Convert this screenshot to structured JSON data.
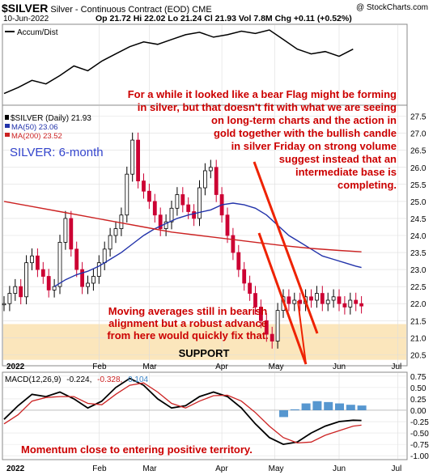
{
  "header": {
    "symbol": "$SILVER",
    "name": "Silver - Continuous Contract (EOD)",
    "exchange": "CME",
    "copyright": "@ StockCharts.com",
    "date": "10-Jun-2022",
    "quote": "Op 21.72 Hi 22.02 Lo 21.24 Cl 21.93 Vol 7.8M Chg +0.11 (+0.52%)"
  },
  "legend": {
    "accum": "Accum/Dist",
    "price": "$SILVER (Daily) 21.93",
    "ma50": "MA(50) 23.06",
    "ma200": "MA(200) 23.52",
    "macd_label": "MACD(12,26,9)",
    "macd_v1": "-0.224,",
    "macd_v2": "-0.328,",
    "macd_v3": "0.104"
  },
  "annotations": {
    "title": "SILVER: 6-month",
    "top_lines": [
      "For a while it looked like a bear Flag might be forming",
      "in silver, but that doesn't fit with what we are seeing",
      "on long-term charts and the action in",
      "gold together with the bullish candle",
      "in silver Friday on strong volume",
      "suggest instead that an",
      "intermediate base is",
      "completing."
    ],
    "ma_lines": [
      "Moving averages still in bearish",
      "alignment but a robust advance",
      "from here would quickly fix that."
    ],
    "support": "SUPPORT",
    "momentum": "Momentum close to entering positive territory."
  },
  "colors": {
    "price_up": "#000000",
    "price_down": "#cc0033",
    "ma50": "#2233aa",
    "ma200": "#cc2222",
    "annotation": "#cc0000",
    "title_blue": "#3344cc",
    "support_band": "#fbe3b5",
    "hist": "#3a85c8"
  },
  "chart_data": [
    {
      "type": "line",
      "name": "accum-dist",
      "series": [
        {
          "name": "Accum/Dist",
          "x": [
            0,
            5,
            10,
            15,
            20,
            25,
            30,
            35,
            40,
            45,
            50,
            55,
            60,
            65,
            70,
            75,
            80,
            85,
            90,
            95,
            100,
            105,
            110,
            115,
            120,
            125
          ],
          "values": [
            7,
            12,
            18,
            15,
            22,
            30,
            26,
            34,
            40,
            46,
            50,
            48,
            52,
            56,
            58,
            54,
            56,
            59,
            57,
            60,
            52,
            44,
            40,
            42,
            38,
            44
          ]
        }
      ]
    },
    {
      "type": "line",
      "name": "silver-price",
      "x_tick_labels": [
        "2022",
        "Feb",
        "Mar",
        "Apr",
        "May",
        "Jun",
        "Jul"
      ],
      "y_ticks": [
        20.5,
        21.0,
        21.5,
        22.0,
        22.5,
        23.0,
        23.5,
        24.0,
        24.5,
        25.0,
        25.5,
        26.0,
        26.5,
        27.0,
        27.5
      ],
      "ylim": [
        20.2,
        27.8
      ],
      "support_band": [
        20.35,
        21.4
      ],
      "series": [
        {
          "name": "$SILVER (Daily) 21.93",
          "x": [
            0,
            2,
            4,
            6,
            8,
            10,
            12,
            14,
            16,
            18,
            20,
            22,
            24,
            26,
            28,
            30,
            32,
            34,
            36,
            38,
            40,
            42,
            44,
            46,
            48,
            50,
            52,
            54,
            56,
            58,
            60,
            62,
            64,
            66,
            68,
            70,
            72,
            74,
            76,
            78,
            80,
            82,
            84,
            86,
            88,
            90,
            92,
            94,
            96,
            98,
            100,
            102,
            104,
            106,
            108,
            110,
            112,
            114,
            116,
            118,
            120,
            122,
            124,
            126,
            128
          ],
          "values": [
            22.0,
            22.3,
            22.5,
            22.2,
            23.2,
            23.4,
            23.0,
            22.8,
            22.4,
            22.5,
            23.8,
            24.5,
            23.6,
            23.0,
            22.5,
            22.6,
            22.8,
            23.2,
            23.6,
            24.0,
            24.2,
            24.6,
            25.8,
            26.8,
            25.6,
            25.3,
            25.0,
            24.6,
            24.2,
            24.4,
            24.8,
            25.2,
            24.9,
            24.7,
            24.5,
            25.4,
            25.9,
            26.0,
            25.2,
            24.6,
            24.0,
            23.5,
            23.0,
            22.6,
            22.3,
            21.9,
            21.5,
            21.1,
            20.9,
            21.8,
            22.2,
            22.0,
            22.1,
            22.0,
            22.2,
            22.1,
            22.3,
            22.0,
            22.1,
            22.2,
            22.0,
            21.9,
            22.1,
            22.0,
            21.93
          ]
        },
        {
          "name": "MA(50) 23.06",
          "x": [
            18,
            22,
            26,
            30,
            34,
            38,
            42,
            46,
            50,
            54,
            58,
            62,
            66,
            70,
            74,
            78,
            82,
            86,
            90,
            94,
            98,
            102,
            106,
            110,
            114,
            118,
            122,
            126,
            128
          ],
          "values": [
            22.5,
            22.7,
            22.85,
            22.95,
            23.1,
            23.3,
            23.5,
            23.75,
            24.0,
            24.2,
            24.35,
            24.5,
            24.6,
            24.68,
            24.75,
            24.9,
            24.95,
            24.9,
            24.8,
            24.6,
            24.3,
            24.0,
            23.8,
            23.6,
            23.4,
            23.3,
            23.2,
            23.1,
            23.06
          ]
        },
        {
          "name": "MA(200) 23.52",
          "x": [
            0,
            10,
            20,
            30,
            40,
            50,
            60,
            70,
            80,
            90,
            100,
            110,
            120,
            128
          ],
          "values": [
            25.0,
            24.85,
            24.7,
            24.55,
            24.4,
            24.25,
            24.1,
            24.0,
            23.9,
            23.8,
            23.7,
            23.62,
            23.56,
            23.52
          ]
        }
      ]
    },
    {
      "type": "line",
      "name": "macd",
      "x_tick_labels": [
        "2022",
        "Feb",
        "Mar",
        "Apr",
        "May",
        "Jun",
        "Jul"
      ],
      "y_ticks": [
        0.75,
        0.5,
        0.25,
        0.0,
        -0.25,
        -0.5,
        -0.75,
        -1.0
      ],
      "ylim": [
        -1.05,
        0.8
      ],
      "series": [
        {
          "name": "MACD",
          "x": [
            0,
            5,
            10,
            15,
            20,
            25,
            30,
            35,
            40,
            45,
            50,
            55,
            60,
            65,
            70,
            75,
            80,
            85,
            90,
            95,
            100,
            105,
            110,
            115,
            120,
            125,
            128
          ],
          "values": [
            -0.2,
            0.1,
            0.35,
            0.3,
            0.4,
            0.25,
            0.05,
            0.2,
            0.5,
            0.7,
            0.55,
            0.25,
            0.05,
            0.1,
            0.3,
            0.4,
            0.3,
            0.05,
            -0.3,
            -0.6,
            -0.75,
            -0.7,
            -0.5,
            -0.35,
            -0.25,
            -0.22,
            -0.224
          ]
        },
        {
          "name": "Signal",
          "x": [
            0,
            5,
            10,
            15,
            20,
            25,
            30,
            35,
            40,
            45,
            50,
            55,
            60,
            65,
            70,
            75,
            80,
            85,
            90,
            95,
            100,
            105,
            110,
            115,
            120,
            125,
            128
          ],
          "values": [
            -0.3,
            -0.1,
            0.2,
            0.28,
            0.3,
            0.3,
            0.15,
            0.12,
            0.35,
            0.55,
            0.6,
            0.4,
            0.15,
            0.05,
            0.2,
            0.32,
            0.33,
            0.2,
            -0.05,
            -0.35,
            -0.6,
            -0.72,
            -0.7,
            -0.55,
            -0.45,
            -0.35,
            -0.328
          ]
        },
        {
          "name": "Histogram",
          "x": [
            100,
            104,
            108,
            112,
            116,
            120,
            124,
            128
          ],
          "values": [
            -0.15,
            0.02,
            0.15,
            0.2,
            0.18,
            0.15,
            0.12,
            0.104
          ]
        }
      ]
    }
  ]
}
